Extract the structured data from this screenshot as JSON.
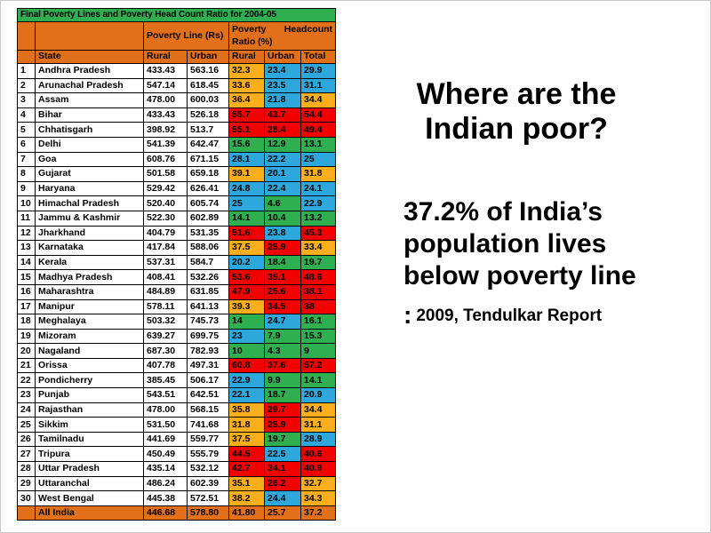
{
  "table": {
    "title": "Final Poverty Lines and Poverty Head Count Ratio for 2004-05",
    "group_poverty_line": "Poverty Line (Rs)",
    "group_headcount": "Poverty Headcount Ratio (%)",
    "columns": [
      "State",
      "Rural",
      "Urban",
      "Rural",
      "Urban",
      "Total"
    ],
    "rows": [
      {
        "n": "1",
        "state": "Andhra Pradesh",
        "pl": [
          "433.43",
          "563.16"
        ],
        "hc": [
          "32.3",
          "23.4",
          "29.9"
        ],
        "c": [
          "o",
          "b",
          "b"
        ]
      },
      {
        "n": "2",
        "state": "Arunachal Pradesh",
        "pl": [
          "547.14",
          "618.45"
        ],
        "hc": [
          "33.6",
          "23.5",
          "31.1"
        ],
        "c": [
          "o",
          "b",
          "b"
        ]
      },
      {
        "n": "3",
        "state": "Assam",
        "pl": [
          "478.00",
          "600.03"
        ],
        "hc": [
          "36.4",
          "21.8",
          "34.4"
        ],
        "c": [
          "o",
          "b",
          "o"
        ]
      },
      {
        "n": "4",
        "state": "Bihar",
        "pl": [
          "433.43",
          "526.18"
        ],
        "hc": [
          "55.7",
          "43.7",
          "54.4"
        ],
        "c": [
          "r",
          "r",
          "r"
        ]
      },
      {
        "n": "5",
        "state": "Chhatisgarh",
        "pl": [
          "398.92",
          "513.7"
        ],
        "hc": [
          "55.1",
          "28.4",
          "49.4"
        ],
        "c": [
          "r",
          "r",
          "r"
        ]
      },
      {
        "n": "6",
        "state": "Delhi",
        "pl": [
          "541.39",
          "642.47"
        ],
        "hc": [
          "15.6",
          "12.9",
          "13.1"
        ],
        "c": [
          "g",
          "g",
          "g"
        ]
      },
      {
        "n": "7",
        "state": "Goa",
        "pl": [
          "608.76",
          "671.15"
        ],
        "hc": [
          "28.1",
          "22.2",
          "25"
        ],
        "c": [
          "b",
          "b",
          "b"
        ]
      },
      {
        "n": "8",
        "state": "Gujarat",
        "pl": [
          "501.58",
          "659.18"
        ],
        "hc": [
          "39.1",
          "20.1",
          "31.8"
        ],
        "c": [
          "o",
          "b",
          "o"
        ]
      },
      {
        "n": "9",
        "state": "Haryana",
        "pl": [
          "529.42",
          "626.41"
        ],
        "hc": [
          "24.8",
          "22.4",
          "24.1"
        ],
        "c": [
          "b",
          "b",
          "b"
        ]
      },
      {
        "n": "10",
        "state": "Himachal Pradesh",
        "pl": [
          "520.40",
          "605.74"
        ],
        "hc": [
          "25",
          "4.6",
          "22.9"
        ],
        "c": [
          "b",
          "g",
          "b"
        ]
      },
      {
        "n": "11",
        "state": "Jammu & Kashmir",
        "pl": [
          "522.30",
          "602.89"
        ],
        "hc": [
          "14.1",
          "10.4",
          "13.2"
        ],
        "c": [
          "g",
          "g",
          "g"
        ]
      },
      {
        "n": "12",
        "state": "Jharkhand",
        "pl": [
          "404.79",
          "531.35"
        ],
        "hc": [
          "51.6",
          "23.8",
          "45.3"
        ],
        "c": [
          "r",
          "b",
          "r"
        ]
      },
      {
        "n": "13",
        "state": "Karnataka",
        "pl": [
          "417.84",
          "588.06"
        ],
        "hc": [
          "37.5",
          "25.9",
          "33.4"
        ],
        "c": [
          "o",
          "r",
          "o"
        ]
      },
      {
        "n": "14",
        "state": "Kerala",
        "pl": [
          "537.31",
          "584.7"
        ],
        "hc": [
          "20.2",
          "18.4",
          "19.7"
        ],
        "c": [
          "b",
          "g",
          "g"
        ]
      },
      {
        "n": "15",
        "state": "Madhya Pradesh",
        "pl": [
          "408.41",
          "532.26"
        ],
        "hc": [
          "53.6",
          "35.1",
          "48.6"
        ],
        "c": [
          "r",
          "r",
          "r"
        ]
      },
      {
        "n": "16",
        "state": "Maharashtra",
        "pl": [
          "484.89",
          "631.85"
        ],
        "hc": [
          "47.9",
          "25.6",
          "38.1"
        ],
        "c": [
          "r",
          "r",
          "r"
        ]
      },
      {
        "n": "17",
        "state": "Manipur",
        "pl": [
          "578.11",
          "641.13"
        ],
        "hc": [
          "39.3",
          "34.5",
          "38"
        ],
        "c": [
          "o",
          "r",
          "r"
        ]
      },
      {
        "n": "18",
        "state": "Meghalaya",
        "pl": [
          "503.32",
          "745.73"
        ],
        "hc": [
          "14",
          "24.7",
          "16.1"
        ],
        "c": [
          "g",
          "b",
          "g"
        ]
      },
      {
        "n": "19",
        "state": "Mizoram",
        "pl": [
          "639.27",
          "699.75"
        ],
        "hc": [
          "23",
          "7.9",
          "15.3"
        ],
        "c": [
          "b",
          "g",
          "g"
        ]
      },
      {
        "n": "20",
        "state": "Nagaland",
        "pl": [
          "687.30",
          "782.93"
        ],
        "hc": [
          "10",
          "4.3",
          "9"
        ],
        "c": [
          "g",
          "g",
          "g"
        ]
      },
      {
        "n": "21",
        "state": "Orissa",
        "pl": [
          "407.78",
          "497.31"
        ],
        "hc": [
          "60.8",
          "37.6",
          "57.2"
        ],
        "c": [
          "r",
          "r",
          "r"
        ]
      },
      {
        "n": "22",
        "state": "Pondicherry",
        "pl": [
          "385.45",
          "506.17"
        ],
        "hc": [
          "22.9",
          "9.9",
          "14.1"
        ],
        "c": [
          "b",
          "g",
          "g"
        ]
      },
      {
        "n": "23",
        "state": "Punjab",
        "pl": [
          "543.51",
          "642.51"
        ],
        "hc": [
          "22.1",
          "18.7",
          "20.9"
        ],
        "c": [
          "b",
          "g",
          "b"
        ]
      },
      {
        "n": "24",
        "state": "Rajasthan",
        "pl": [
          "478.00",
          "568.15"
        ],
        "hc": [
          "35.8",
          "29.7",
          "34.4"
        ],
        "c": [
          "o",
          "r",
          "o"
        ]
      },
      {
        "n": "25",
        "state": "Sikkim",
        "pl": [
          "531.50",
          "741.68"
        ],
        "hc": [
          "31.8",
          "25.9",
          "31.1"
        ],
        "c": [
          "o",
          "r",
          "o"
        ]
      },
      {
        "n": "26",
        "state": "Tamilnadu",
        "pl": [
          "441.69",
          "559.77"
        ],
        "hc": [
          "37.5",
          "19.7",
          "28.9"
        ],
        "c": [
          "o",
          "g",
          "b"
        ]
      },
      {
        "n": "27",
        "state": "Tripura",
        "pl": [
          "450.49",
          "555.79"
        ],
        "hc": [
          "44.5",
          "22.5",
          "40.6"
        ],
        "c": [
          "r",
          "b",
          "r"
        ]
      },
      {
        "n": "28",
        "state": "Uttar Pradesh",
        "pl": [
          "435.14",
          "532.12"
        ],
        "hc": [
          "42.7",
          "34.1",
          "40.9"
        ],
        "c": [
          "r",
          "r",
          "r"
        ]
      },
      {
        "n": "29",
        "state": "Uttaranchal",
        "pl": [
          "486.24",
          "602.39"
        ],
        "hc": [
          "35.1",
          "26.2",
          "32.7"
        ],
        "c": [
          "o",
          "r",
          "o"
        ]
      },
      {
        "n": "30",
        "state": "West Bengal",
        "pl": [
          "445.38",
          "572.51"
        ],
        "hc": [
          "38.2",
          "24.4",
          "34.3"
        ],
        "c": [
          "o",
          "b",
          "o"
        ]
      }
    ],
    "footer": {
      "n": "",
      "state": "All India",
      "pl": [
        "446.68",
        "578.80"
      ],
      "hc": [
        "41.80",
        "25.7",
        "37.2"
      ]
    }
  },
  "right_panel": {
    "heading": "Where are the Indian poor?",
    "statement": "37.2% of India’s population lives below poverty line",
    "source_colon": ":",
    "source_text": "2009, Tendulkar Report"
  },
  "colors": {
    "title_green": "#2FAF4F",
    "header_orange": "#E2701B",
    "cell_red": "#F20000",
    "cell_amber": "#FBAE1C",
    "cell_blue": "#2EA8DC",
    "cell_green": "#2FAF4F",
    "text": "#000000"
  }
}
